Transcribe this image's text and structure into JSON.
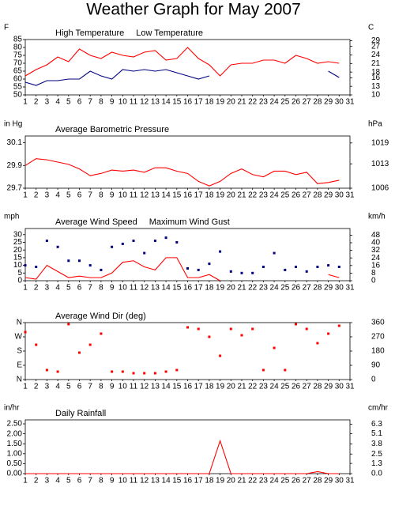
{
  "title": "Weather Graph for May 2007",
  "chart_data": [
    {
      "type": "line",
      "y_label": "F",
      "y2_label": "C",
      "x": [
        1,
        2,
        3,
        4,
        5,
        6,
        7,
        8,
        9,
        10,
        11,
        12,
        13,
        14,
        15,
        16,
        17,
        18,
        19,
        20,
        21,
        22,
        23,
        24,
        25,
        26,
        27,
        28,
        29,
        30
      ],
      "xlim": [
        1,
        31
      ],
      "xticks": [
        1,
        2,
        3,
        4,
        5,
        6,
        7,
        8,
        9,
        10,
        11,
        12,
        13,
        14,
        15,
        16,
        17,
        18,
        19,
        20,
        21,
        22,
        23,
        24,
        25,
        26,
        27,
        28,
        29,
        30,
        31
      ],
      "ylim": [
        50,
        85
      ],
      "yticks": [
        50,
        55,
        60,
        65,
        70,
        75,
        80,
        85
      ],
      "y2lim": [
        10,
        29.4
      ],
      "y2ticks": [
        10,
        13,
        16,
        18,
        21,
        24,
        27,
        29
      ],
      "series": [
        {
          "name": "High Temperature",
          "type": "line",
          "color": "#ff0000",
          "values": [
            62,
            66,
            69,
            74,
            71,
            79,
            75,
            73,
            77,
            75,
            74,
            77,
            78,
            72,
            73,
            80,
            73,
            69,
            62,
            69,
            70,
            70,
            72,
            72,
            70,
            75,
            73,
            70,
            71,
            70
          ]
        },
        {
          "name": "Low Temperature",
          "type": "line",
          "color": "#000080",
          "values": [
            58,
            56,
            59,
            59,
            60,
            60,
            65,
            62,
            60,
            66,
            65,
            66,
            65,
            66,
            64,
            62,
            60,
            62,
            null,
            null,
            null,
            null,
            null,
            null,
            null,
            null,
            null,
            null,
            65,
            61
          ]
        }
      ]
    },
    {
      "type": "line",
      "y_label": "in Hg",
      "y2_label": "hPa",
      "x": [
        1,
        2,
        3,
        4,
        5,
        6,
        7,
        8,
        9,
        10,
        11,
        12,
        13,
        14,
        15,
        16,
        17,
        18,
        19,
        20,
        21,
        22,
        23,
        24,
        25,
        26,
        27,
        28,
        29,
        30
      ],
      "xlim": [
        1,
        31
      ],
      "xticks": [
        1,
        2,
        3,
        4,
        5,
        6,
        7,
        8,
        9,
        10,
        11,
        12,
        13,
        14,
        15,
        16,
        17,
        18,
        19,
        20,
        21,
        22,
        23,
        24,
        25,
        26,
        27,
        28,
        29,
        30,
        31
      ],
      "ylim": [
        29.7,
        30.16
      ],
      "yticks": [
        29.7,
        29.9,
        30.1
      ],
      "y2lim": [
        1006,
        1021
      ],
      "y2ticks": [
        1006,
        1013,
        1019
      ],
      "series": [
        {
          "name": "Average Barometric Pressure",
          "type": "line",
          "color": "#ff0000",
          "values": [
            29.9,
            29.96,
            29.95,
            29.93,
            29.91,
            29.87,
            29.81,
            29.83,
            29.86,
            29.85,
            29.86,
            29.84,
            29.88,
            29.88,
            29.85,
            29.83,
            29.76,
            29.72,
            29.76,
            29.83,
            29.87,
            29.82,
            29.8,
            29.85,
            29.85,
            29.82,
            29.84,
            29.74,
            29.75,
            29.77
          ]
        }
      ]
    },
    {
      "type": "line",
      "y_label": "mph",
      "y2_label": "km/h",
      "x": [
        1,
        2,
        3,
        4,
        5,
        6,
        7,
        8,
        9,
        10,
        11,
        12,
        13,
        14,
        15,
        16,
        17,
        18,
        19,
        20,
        21,
        22,
        23,
        24,
        25,
        26,
        27,
        28,
        29,
        30
      ],
      "xlim": [
        1,
        31
      ],
      "xticks": [
        1,
        2,
        3,
        4,
        5,
        6,
        7,
        8,
        9,
        10,
        11,
        12,
        13,
        14,
        15,
        16,
        17,
        18,
        19,
        20,
        21,
        22,
        23,
        24,
        25,
        26,
        27,
        28,
        29,
        30,
        31
      ],
      "ylim": [
        0,
        34
      ],
      "yticks": [
        0,
        5,
        10,
        15,
        20,
        25,
        30
      ],
      "y2lim": [
        0,
        55
      ],
      "y2ticks": [
        0,
        8,
        16,
        24,
        32,
        40,
        48
      ],
      "series": [
        {
          "name": "Average Wind Speed",
          "type": "line",
          "color": "#ff0000",
          "values": [
            2,
            1,
            10,
            6,
            2,
            3,
            2,
            2,
            5,
            12,
            13,
            9,
            7,
            15,
            15,
            2,
            2,
            4,
            0,
            null,
            null,
            null,
            null,
            null,
            null,
            null,
            null,
            null,
            4,
            2
          ]
        },
        {
          "name": "Maximum Wind Gust",
          "type": "scatter",
          "color": "#000080",
          "values": [
            10,
            9,
            26,
            22,
            13,
            13,
            10,
            7,
            22,
            24,
            26,
            18,
            26,
            28,
            25,
            8,
            7,
            11,
            19,
            6,
            5,
            5,
            9,
            18,
            7,
            9,
            6,
            9,
            10,
            9
          ]
        }
      ]
    },
    {
      "type": "scatter",
      "ytick_color": "#ff0000",
      "x": [
        1,
        2,
        3,
        4,
        5,
        6,
        7,
        8,
        9,
        10,
        11,
        12,
        13,
        14,
        15,
        16,
        17,
        18,
        19,
        20,
        21,
        22,
        23,
        24,
        25,
        26,
        27,
        28,
        29,
        30
      ],
      "xlim": [
        1,
        31
      ],
      "xticks": [
        1,
        2,
        3,
        4,
        5,
        6,
        7,
        8,
        9,
        10,
        11,
        12,
        13,
        14,
        15,
        16,
        17,
        18,
        19,
        20,
        21,
        22,
        23,
        24,
        25,
        26,
        27,
        28,
        29,
        30,
        31
      ],
      "ylim": [
        0,
        360
      ],
      "yticks": [
        {
          "value": 0,
          "label": "N"
        },
        {
          "value": 90,
          "label": "E"
        },
        {
          "value": 180,
          "label": "S"
        },
        {
          "value": 270,
          "label": "W"
        },
        {
          "value": 360,
          "label": "N"
        }
      ],
      "y2lim": [
        0,
        360
      ],
      "y2ticks": [
        0,
        90,
        180,
        270,
        360
      ],
      "series": [
        {
          "name": "Average Wind Dir (deg)",
          "type": "scatter",
          "color": "#ff0000",
          "values": [
            300,
            220,
            60,
            50,
            350,
            170,
            220,
            290,
            50,
            50,
            40,
            40,
            40,
            50,
            60,
            330,
            320,
            270,
            150,
            320,
            280,
            320,
            60,
            200,
            60,
            350,
            320,
            230,
            290,
            340
          ]
        }
      ]
    },
    {
      "type": "line",
      "y_label": "in/hr",
      "y2_label": "cm/hr",
      "x": [
        1,
        2,
        3,
        4,
        5,
        6,
        7,
        8,
        9,
        10,
        11,
        12,
        13,
        14,
        15,
        16,
        17,
        18,
        19,
        20,
        21,
        22,
        23,
        24,
        25,
        26,
        27,
        28,
        29,
        30
      ],
      "xlim": [
        1,
        31
      ],
      "xticks": [
        1,
        2,
        3,
        4,
        5,
        6,
        7,
        8,
        9,
        10,
        11,
        12,
        13,
        14,
        15,
        16,
        17,
        18,
        19,
        20,
        21,
        22,
        23,
        24,
        25,
        26,
        27,
        28,
        29,
        30,
        31
      ],
      "ylim": [
        0,
        2.7
      ],
      "yticks": [
        {
          "value": 0,
          "label": "0.00"
        },
        {
          "value": 0.5,
          "label": "0.50"
        },
        {
          "value": 1,
          "label": "1.00"
        },
        {
          "value": 1.5,
          "label": "1.50"
        },
        {
          "value": 2,
          "label": "2.00"
        },
        {
          "value": 2.5,
          "label": "2.50"
        }
      ],
      "y2lim": [
        0,
        6.86
      ],
      "y2ticks": [
        {
          "value": 0,
          "label": "0.0"
        },
        {
          "value": 1.3,
          "label": "1.3"
        },
        {
          "value": 2.5,
          "label": "2.5"
        },
        {
          "value": 3.8,
          "label": "3.8"
        },
        {
          "value": 5.1,
          "label": "5.1"
        },
        {
          "value": 6.3,
          "label": "6.3"
        }
      ],
      "series": [
        {
          "name": "Daily Rainfall",
          "type": "line",
          "color": "#ff0000",
          "values": [
            0,
            0,
            0,
            0,
            0,
            0,
            0,
            0,
            0,
            0,
            0,
            0,
            0,
            0,
            0,
            0,
            0,
            0,
            1.65,
            0,
            0,
            0,
            0,
            0,
            0,
            0,
            0,
            0.1,
            0,
            0
          ]
        }
      ]
    }
  ]
}
